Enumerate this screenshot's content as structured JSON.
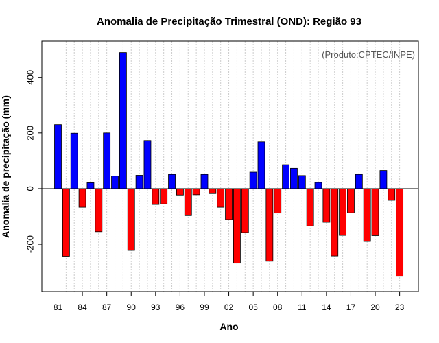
{
  "chart_data": {
    "type": "bar",
    "title": "Anomalia de Precipitação Trimestral (OND): Região 93",
    "source_note": "(Produto:CPTEC/INPE)",
    "xlabel": "Ano",
    "ylabel": "Anomalia de precipitação (mm)",
    "ylim": [
      -370,
      530
    ],
    "yticks": [
      -200,
      0,
      200,
      400
    ],
    "xtick_labels": [
      "81",
      "84",
      "87",
      "90",
      "93",
      "96",
      "99",
      "02",
      "05",
      "08",
      "11",
      "14",
      "17",
      "20",
      "23"
    ],
    "categories": [
      "1981",
      "1982",
      "1983",
      "1984",
      "1985",
      "1986",
      "1987",
      "1988",
      "1989",
      "1990",
      "1991",
      "1992",
      "1993",
      "1994",
      "1995",
      "1996",
      "1997",
      "1998",
      "1999",
      "2000",
      "2001",
      "2002",
      "2003",
      "2004",
      "2005",
      "2006",
      "2007",
      "2008",
      "2009",
      "2010",
      "2011",
      "2012",
      "2013",
      "2014",
      "2015",
      "2016",
      "2017",
      "2018",
      "2019",
      "2020",
      "2021",
      "2022",
      "2023"
    ],
    "values": [
      230,
      -243,
      199,
      -67,
      21,
      -155,
      200,
      45,
      489,
      -222,
      48,
      173,
      -57,
      -55,
      51,
      -23,
      -97,
      -22,
      51,
      -18,
      -67,
      -111,
      -268,
      -158,
      59,
      168,
      -261,
      -88,
      86,
      73,
      47,
      -134,
      22,
      -121,
      -242,
      -168,
      -87,
      51,
      -190,
      -169,
      65,
      -42,
      -315
    ],
    "positive_color": "#0000ff",
    "negative_color": "#ff0000",
    "grid": true
  }
}
